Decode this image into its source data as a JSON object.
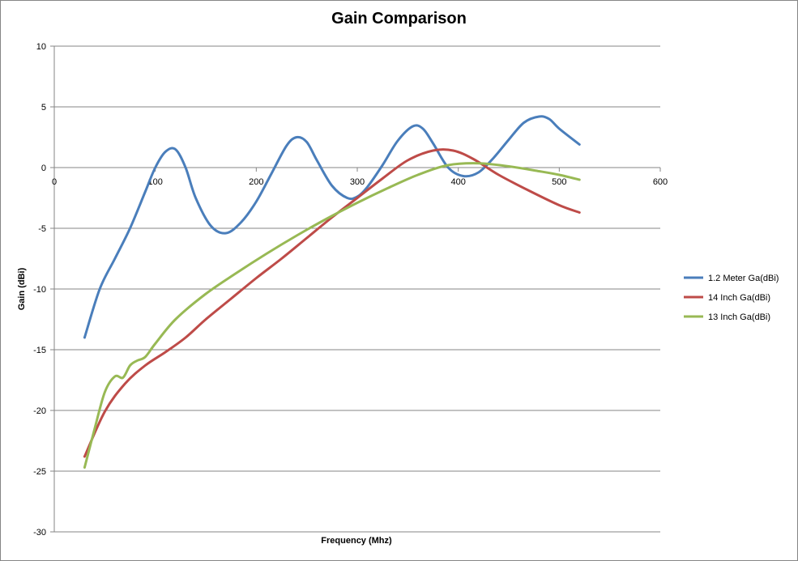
{
  "chart_data": {
    "type": "line",
    "title": "Gain Comparison",
    "xlabel": "Frequency (Mhz)",
    "ylabel": "Gain  (dBi)",
    "xlim": [
      0,
      600
    ],
    "ylim": [
      -30,
      10
    ],
    "x_ticks": [
      0,
      100,
      200,
      300,
      400,
      500,
      600
    ],
    "y_ticks": [
      10,
      5,
      0,
      -5,
      -10,
      -15,
      -20,
      -25,
      -30
    ],
    "grid": true,
    "legend_position": "right",
    "series": [
      {
        "name": "1.2 Meter Ga(dBi)",
        "color": "#4A7EBB",
        "x": [
          30,
          45,
          60,
          75,
          90,
          100,
          110,
          120,
          130,
          140,
          155,
          170,
          185,
          200,
          215,
          230,
          240,
          250,
          260,
          275,
          290,
          300,
          310,
          325,
          340,
          355,
          365,
          375,
          390,
          405,
          420,
          435,
          450,
          465,
          480,
          490,
          500,
          520
        ],
        "y": [
          -14,
          -10,
          -7.5,
          -5,
          -2,
          0,
          1.3,
          1.5,
          0,
          -2.5,
          -4.8,
          -5.4,
          -4.5,
          -2.8,
          -0.5,
          1.8,
          2.5,
          2.1,
          0.6,
          -1.5,
          -2.5,
          -2.4,
          -1.6,
          0.2,
          2.2,
          3.4,
          3.2,
          2,
          0,
          -0.7,
          -0.4,
          0.8,
          2.3,
          3.7,
          4.2,
          4,
          3.2,
          1.9
        ]
      },
      {
        "name": "14 Inch Ga(dBi)",
        "color": "#BE4B48",
        "x": [
          30,
          50,
          70,
          90,
          110,
          130,
          150,
          175,
          200,
          225,
          250,
          275,
          300,
          325,
          350,
          375,
          395,
          415,
          440,
          470,
          500,
          520
        ],
        "y": [
          -23.8,
          -20.1,
          -17.8,
          -16.3,
          -15.2,
          -14,
          -12.5,
          -10.8,
          -9.1,
          -7.5,
          -5.8,
          -4.1,
          -2.5,
          -0.9,
          0.6,
          1.4,
          1.4,
          0.7,
          -0.6,
          -1.9,
          -3.1,
          -3.7
        ]
      },
      {
        "name": "13 Inch Ga(dBi)",
        "color": "#98B954",
        "x": [
          30,
          40,
          50,
          60,
          68,
          75,
          82,
          90,
          100,
          120,
          150,
          180,
          210,
          240,
          270,
          300,
          330,
          360,
          390,
          420,
          450,
          480,
          500,
          520
        ],
        "y": [
          -24.7,
          -21.5,
          -18.5,
          -17.2,
          -17.3,
          -16.3,
          -15.9,
          -15.6,
          -14.5,
          -12.5,
          -10.4,
          -8.7,
          -7.1,
          -5.6,
          -4.2,
          -2.9,
          -1.7,
          -0.6,
          0.2,
          0.35,
          0.1,
          -0.3,
          -0.6,
          -1.0
        ]
      }
    ]
  }
}
